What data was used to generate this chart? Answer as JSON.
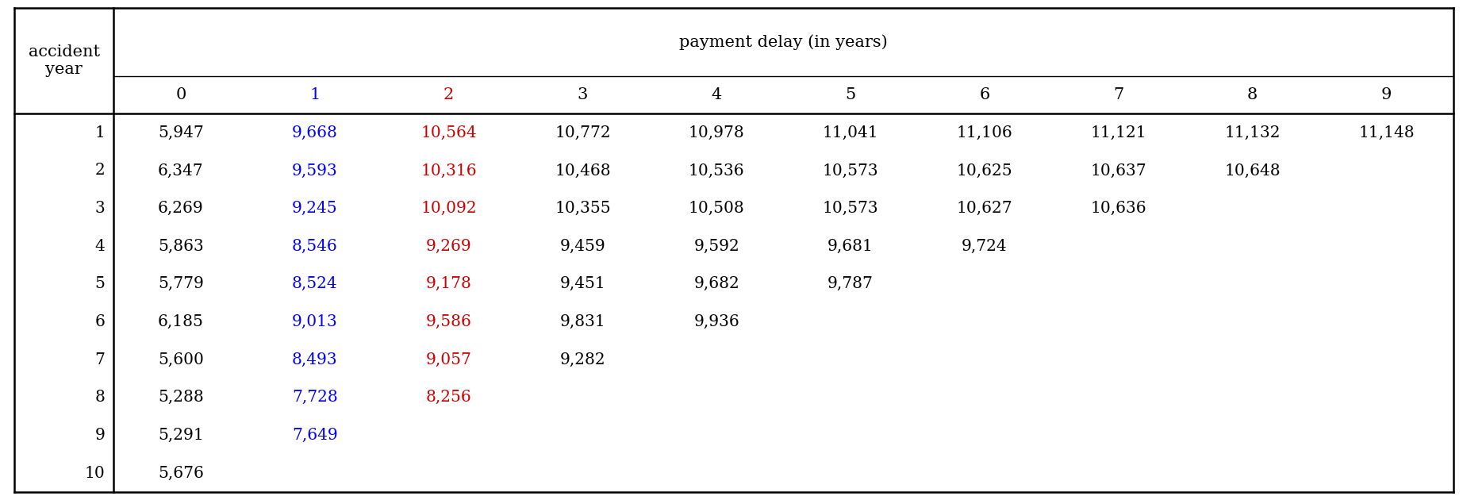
{
  "title_top": "payment delay (in years)",
  "col_headers": [
    "0",
    "1",
    "2",
    "3",
    "4",
    "5",
    "6",
    "7",
    "8",
    "9"
  ],
  "col_header_colors": [
    "black",
    "#0000FF",
    "#CC0000",
    "black",
    "black",
    "black",
    "black",
    "black",
    "black",
    "black"
  ],
  "row_labels": [
    "1",
    "2",
    "3",
    "4",
    "5",
    "6",
    "7",
    "8",
    "9",
    "10"
  ],
  "table_data": [
    [
      "5,947",
      "9,668",
      "10,564",
      "10,772",
      "10,978",
      "11,041",
      "11,106",
      "11,121",
      "11,132",
      "11,148"
    ],
    [
      "6,347",
      "9,593",
      "10,316",
      "10,468",
      "10,536",
      "10,573",
      "10,625",
      "10,637",
      "10,648",
      ""
    ],
    [
      "6,269",
      "9,245",
      "10,092",
      "10,355",
      "10,508",
      "10,573",
      "10,627",
      "10,636",
      "",
      ""
    ],
    [
      "5,863",
      "8,546",
      "9,269",
      "9,459",
      "9,592",
      "9,681",
      "9,724",
      "",
      "",
      ""
    ],
    [
      "5,779",
      "8,524",
      "9,178",
      "9,451",
      "9,682",
      "9,787",
      "",
      "",
      "",
      ""
    ],
    [
      "6,185",
      "9,013",
      "9,586",
      "9,831",
      "9,936",
      "",
      "",
      "",
      "",
      ""
    ],
    [
      "5,600",
      "8,493",
      "9,057",
      "9,282",
      "",
      "",
      "",
      "",
      "",
      ""
    ],
    [
      "5,288",
      "7,728",
      "8,256",
      "",
      "",
      "",
      "",
      "",
      "",
      ""
    ],
    [
      "5,291",
      "7,649",
      "",
      "",
      "",
      "",
      "",
      "",
      "",
      ""
    ],
    [
      "5,676",
      "",
      "",
      "",
      "",
      "",
      "",
      "",
      "",
      ""
    ]
  ],
  "col1_color": "#0000FF",
  "col2_color": "#CC0000",
  "bg_color": "white",
  "font_size": 14.5,
  "header_font_size": 15.0,
  "fig_width": 18.44,
  "fig_height": 6.3,
  "dpi": 100
}
